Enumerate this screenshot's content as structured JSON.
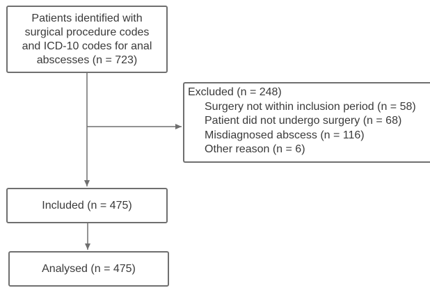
{
  "boxes": {
    "identified": {
      "lines": [
        "Patients identified with",
        "surgical procedure codes",
        "and ICD-10 codes for anal",
        "abscesses (n = 723)"
      ]
    },
    "excluded": {
      "title": "Excluded (n = 248)",
      "reasons": [
        "Surgery not within inclusion period (n = 58)",
        "Patient did not undergo surgery (n = 68)",
        "Misdiagnosed abscess (n = 116)",
        "Other reason (n = 6)"
      ]
    },
    "included": {
      "label": "Included (n = 475)"
    },
    "analysed": {
      "label": "Analysed (n = 475)"
    }
  },
  "colors": {
    "stroke": "#6f6f6f",
    "text": "#3a3a3a",
    "background": "#ffffff"
  }
}
